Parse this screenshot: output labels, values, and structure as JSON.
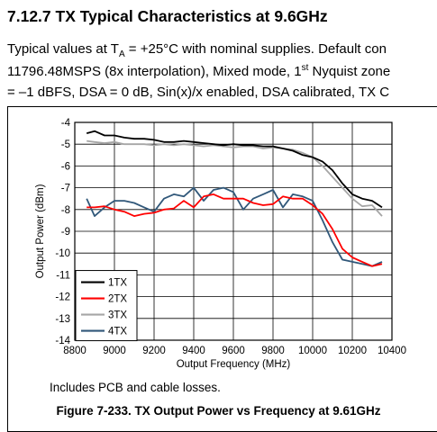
{
  "section": {
    "title": "7.12.7 TX Typical Characteristics at 9.6GHz"
  },
  "paragraph": {
    "line1_pre": "Typical values at T",
    "line1_sub": "A",
    "line1_post": " = +25°C with nominal supplies. Default con",
    "line2_pre": "11796.48MSPS (8x interpolation), Mixed mode, 1",
    "line2_sup": "st",
    "line2_post": " Nyquist zone",
    "line3": "= –1 dBFS, DSA = 0 dB, Sin(x)/x enabled, DSA calibrated, TX C"
  },
  "figure": {
    "note": "Includes PCB and cable losses.",
    "caption": "Figure 7-233. TX Output Power vs Frequency at 9.61GHz"
  },
  "colors": {
    "1TX": "#000000",
    "2TX": "#ff0000",
    "3TX": "#a6a6a6",
    "4TX": "#31587a"
  },
  "chart_data": {
    "type": "line",
    "xlabel": "Output Frequency (MHz)",
    "ylabel": "Output Power (dBm)",
    "xlim": [
      8800,
      10400
    ],
    "ylim": [
      -14,
      -4
    ],
    "xticks": [
      8800,
      9000,
      9200,
      9400,
      9600,
      9800,
      10000,
      10200,
      10400
    ],
    "yticks": [
      -4,
      -5,
      -6,
      -7,
      -8,
      -9,
      -10,
      -11,
      -12,
      -13,
      -14
    ],
    "grid": true,
    "legend_position": "bottom-left",
    "series": [
      {
        "name": "1TX",
        "x": [
          8860,
          8900,
          8950,
          9000,
          9050,
          9100,
          9150,
          9200,
          9250,
          9300,
          9350,
          9400,
          9450,
          9500,
          9550,
          9600,
          9650,
          9700,
          9750,
          9800,
          9850,
          9900,
          9950,
          10000,
          10050,
          10100,
          10150,
          10200,
          10250,
          10300,
          10350
        ],
        "y": [
          -4.5,
          -4.4,
          -4.6,
          -4.6,
          -4.7,
          -4.75,
          -4.75,
          -4.8,
          -4.9,
          -4.9,
          -4.85,
          -4.9,
          -4.95,
          -5.0,
          -5.05,
          -5.0,
          -5.05,
          -5.05,
          -5.1,
          -5.1,
          -5.2,
          -5.3,
          -5.5,
          -5.6,
          -5.8,
          -6.2,
          -6.8,
          -7.3,
          -7.5,
          -7.6,
          -7.9
        ]
      },
      {
        "name": "2TX",
        "x": [
          8860,
          8900,
          8950,
          9000,
          9050,
          9100,
          9150,
          9200,
          9250,
          9300,
          9350,
          9400,
          9450,
          9500,
          9550,
          9600,
          9650,
          9700,
          9750,
          9800,
          9850,
          9900,
          9950,
          10000,
          10050,
          10100,
          10150,
          10200,
          10250,
          10300,
          10350
        ],
        "y": [
          -7.9,
          -7.9,
          -7.85,
          -8.0,
          -8.1,
          -8.3,
          -8.2,
          -8.15,
          -8.0,
          -7.95,
          -7.6,
          -7.9,
          -7.4,
          -7.3,
          -7.5,
          -7.5,
          -7.5,
          -7.7,
          -7.8,
          -7.75,
          -7.4,
          -7.5,
          -7.5,
          -7.8,
          -8.2,
          -8.9,
          -9.8,
          -10.2,
          -10.4,
          -10.6,
          -10.5
        ]
      },
      {
        "name": "3TX",
        "x": [
          8860,
          8900,
          8950,
          9000,
          9050,
          9100,
          9150,
          9200,
          9250,
          9300,
          9350,
          9400,
          9450,
          9500,
          9550,
          9600,
          9650,
          9700,
          9750,
          9800,
          9850,
          9900,
          9950,
          10000,
          10050,
          10100,
          10150,
          10200,
          10250,
          10300,
          10350
        ],
        "y": [
          -4.85,
          -4.9,
          -4.95,
          -4.9,
          -5.0,
          -5.0,
          -5.0,
          -5.05,
          -5.0,
          -5.05,
          -5.0,
          -5.05,
          -5.1,
          -5.05,
          -5.1,
          -5.15,
          -5.1,
          -5.1,
          -5.2,
          -5.15,
          -5.2,
          -5.25,
          -5.4,
          -5.6,
          -6.0,
          -6.5,
          -7.0,
          -7.5,
          -7.85,
          -7.8,
          -8.3
        ]
      },
      {
        "name": "4TX",
        "x": [
          8860,
          8900,
          8950,
          9000,
          9050,
          9100,
          9150,
          9200,
          9250,
          9300,
          9350,
          9400,
          9450,
          9500,
          9550,
          9600,
          9650,
          9700,
          9750,
          9800,
          9850,
          9900,
          9950,
          10000,
          10050,
          10100,
          10150,
          10200,
          10250,
          10300,
          10350
        ],
        "y": [
          -7.5,
          -8.3,
          -7.9,
          -7.6,
          -7.6,
          -7.7,
          -7.9,
          -8.1,
          -7.5,
          -7.3,
          -7.4,
          -7.0,
          -7.6,
          -7.1,
          -7.0,
          -7.2,
          -8.0,
          -7.5,
          -7.3,
          -7.1,
          -7.9,
          -7.3,
          -7.4,
          -7.6,
          -8.5,
          -9.5,
          -10.3,
          -10.4,
          -10.5,
          -10.6,
          -10.4
        ]
      }
    ]
  }
}
